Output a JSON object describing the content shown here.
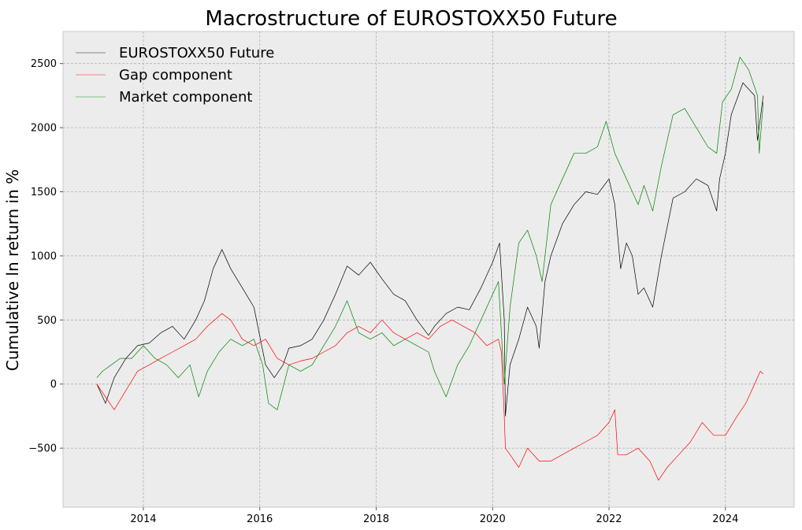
{
  "chart_data": {
    "type": "line",
    "title": "Macrostructure of EUROSTOXX50 Future",
    "xlabel": "",
    "ylabel": "Cumulative ln return in %",
    "xlim": [
      2012.62,
      2025.18
    ],
    "ylim": [
      -960,
      2750
    ],
    "x_ticks": [
      2014,
      2016,
      2018,
      2020,
      2022,
      2024
    ],
    "x_tick_labels": [
      "2014",
      "2016",
      "2018",
      "2020",
      "2022",
      "2024"
    ],
    "y_ticks": [
      -500,
      0,
      500,
      1000,
      1500,
      2000,
      2500
    ],
    "y_tick_labels": [
      "−500",
      "0",
      "500",
      "1000",
      "1500",
      "2000",
      "2500"
    ],
    "grid": true,
    "legend_position": "top-left",
    "background_color": "#ececec",
    "series": [
      {
        "name": "EUROSTOXX50 Future",
        "color": "#000000",
        "x": [
          2013.2,
          2013.35,
          2013.5,
          2013.7,
          2013.9,
          2014.1,
          2014.3,
          2014.5,
          2014.7,
          2014.9,
          2015.05,
          2015.2,
          2015.35,
          2015.5,
          2015.7,
          2015.9,
          2016.1,
          2016.25,
          2016.4,
          2016.5,
          2016.7,
          2016.9,
          2017.1,
          2017.3,
          2017.5,
          2017.7,
          2017.9,
          2018.1,
          2018.3,
          2018.5,
          2018.7,
          2018.9,
          2019.0,
          2019.2,
          2019.4,
          2019.6,
          2019.8,
          2020.0,
          2020.12,
          2020.2,
          2020.22,
          2020.3,
          2020.45,
          2020.6,
          2020.75,
          2020.8,
          2020.9,
          2021.0,
          2021.2,
          2021.4,
          2021.6,
          2021.8,
          2022.0,
          2022.1,
          2022.2,
          2022.3,
          2022.4,
          2022.5,
          2022.6,
          2022.75,
          2022.9,
          2023.1,
          2023.3,
          2023.5,
          2023.7,
          2023.85,
          2023.9,
          2024.0,
          2024.1,
          2024.3,
          2024.5,
          2024.55,
          2024.65
        ],
        "values": [
          0,
          -150,
          50,
          200,
          300,
          320,
          400,
          450,
          350,
          500,
          650,
          900,
          1050,
          900,
          750,
          600,
          150,
          50,
          150,
          280,
          300,
          350,
          500,
          700,
          920,
          850,
          950,
          820,
          700,
          650,
          500,
          380,
          450,
          550,
          600,
          580,
          750,
          950,
          1100,
          500,
          -250,
          150,
          350,
          600,
          450,
          280,
          800,
          1000,
          1250,
          1400,
          1500,
          1480,
          1600,
          1400,
          900,
          1100,
          1000,
          700,
          750,
          600,
          1000,
          1450,
          1500,
          1600,
          1550,
          1350,
          1600,
          1800,
          2100,
          2350,
          2250,
          1900,
          2250
        ]
      },
      {
        "name": "Gap component",
        "color": "#ff0000",
        "x": [
          2013.2,
          2013.35,
          2013.5,
          2013.7,
          2013.9,
          2014.1,
          2014.3,
          2014.5,
          2014.7,
          2014.9,
          2015.1,
          2015.35,
          2015.5,
          2015.7,
          2015.9,
          2016.1,
          2016.3,
          2016.5,
          2016.7,
          2016.9,
          2017.1,
          2017.3,
          2017.5,
          2017.7,
          2017.9,
          2018.1,
          2018.3,
          2018.5,
          2018.7,
          2018.9,
          2019.1,
          2019.3,
          2019.5,
          2019.7,
          2019.9,
          2020.1,
          2020.15,
          2020.2,
          2020.22,
          2020.3,
          2020.45,
          2020.6,
          2020.8,
          2021.0,
          2021.2,
          2021.4,
          2021.6,
          2021.8,
          2022.0,
          2022.1,
          2022.15,
          2022.3,
          2022.5,
          2022.7,
          2022.85,
          2023.0,
          2023.2,
          2023.4,
          2023.6,
          2023.8,
          2024.0,
          2024.2,
          2024.35,
          2024.5,
          2024.6,
          2024.65
        ],
        "values": [
          0,
          -100,
          -200,
          -50,
          100,
          150,
          200,
          250,
          300,
          350,
          450,
          550,
          500,
          350,
          300,
          350,
          200,
          150,
          180,
          200,
          250,
          300,
          400,
          450,
          400,
          500,
          400,
          350,
          400,
          350,
          450,
          500,
          450,
          400,
          300,
          350,
          250,
          -250,
          -500,
          -550,
          -650,
          -500,
          -600,
          -600,
          -550,
          -500,
          -450,
          -400,
          -300,
          -200,
          -550,
          -550,
          -500,
          -600,
          -750,
          -650,
          -550,
          -450,
          -300,
          -400,
          -400,
          -250,
          -150,
          0,
          100,
          80
        ]
      },
      {
        "name": "Market component",
        "color": "#008000",
        "x": [
          2013.2,
          2013.3,
          2013.45,
          2013.6,
          2013.8,
          2014.0,
          2014.2,
          2014.4,
          2014.6,
          2014.8,
          2014.95,
          2015.1,
          2015.3,
          2015.5,
          2015.7,
          2015.9,
          2016.05,
          2016.15,
          2016.3,
          2016.5,
          2016.7,
          2016.9,
          2017.1,
          2017.3,
          2017.5,
          2017.7,
          2017.9,
          2018.1,
          2018.3,
          2018.5,
          2018.7,
          2018.9,
          2019.0,
          2019.2,
          2019.4,
          2019.6,
          2019.8,
          2020.0,
          2020.1,
          2020.2,
          2020.3,
          2020.45,
          2020.6,
          2020.75,
          2020.85,
          2021.0,
          2021.2,
          2021.4,
          2021.6,
          2021.8,
          2021.95,
          2022.1,
          2022.3,
          2022.5,
          2022.6,
          2022.75,
          2022.9,
          2023.1,
          2023.3,
          2023.5,
          2023.7,
          2023.85,
          2023.95,
          2024.1,
          2024.25,
          2024.4,
          2024.55,
          2024.58,
          2024.65
        ],
        "values": [
          50,
          100,
          150,
          200,
          200,
          300,
          200,
          150,
          50,
          150,
          -100,
          100,
          250,
          350,
          300,
          350,
          150,
          -150,
          -200,
          150,
          100,
          150,
          300,
          450,
          650,
          400,
          350,
          400,
          300,
          350,
          300,
          250,
          100,
          -100,
          150,
          300,
          500,
          700,
          800,
          0,
          600,
          1100,
          1200,
          1000,
          800,
          1400,
          1600,
          1800,
          1800,
          1850,
          2050,
          1800,
          1600,
          1400,
          1550,
          1350,
          1700,
          2100,
          2150,
          2000,
          1850,
          1800,
          2200,
          2300,
          2550,
          2450,
          2250,
          1800,
          2200
        ]
      }
    ]
  }
}
